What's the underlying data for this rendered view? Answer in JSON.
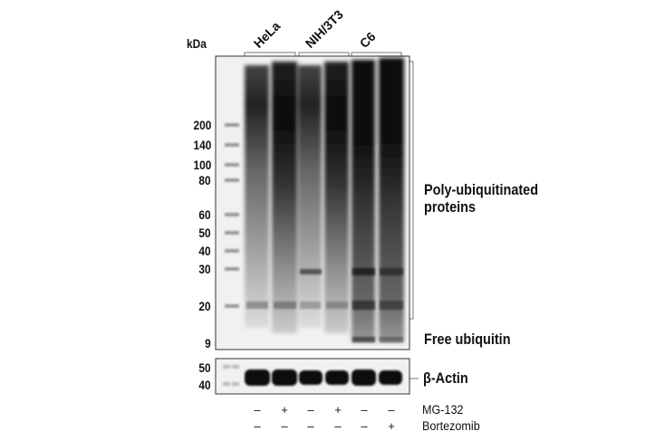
{
  "units_label": "kDa",
  "cell_lines": [
    {
      "label": "HeLa"
    },
    {
      "label": "NIH/3T3"
    },
    {
      "label": "C6"
    }
  ],
  "markers_main": [
    "200",
    "140",
    "100",
    "80",
    "60",
    "50",
    "40",
    "30",
    "20",
    "9"
  ],
  "markers_actin": [
    "50",
    "40"
  ],
  "band_labels": {
    "poly_line1": "Poly-ubiquitinated",
    "poly_line2": "proteins",
    "free": "Free ubiquitin",
    "actin": "β-Actin"
  },
  "treatments": [
    {
      "name": "MG-132",
      "signs": [
        "–",
        "+",
        "–",
        "+",
        "–",
        "–"
      ]
    },
    {
      "name": "Bortezomib",
      "signs": [
        "–",
        "–",
        "–",
        "–",
        "–",
        "+"
      ]
    }
  ],
  "colors": {
    "band": "#0a0a0a",
    "background": "#f2f2f2"
  }
}
